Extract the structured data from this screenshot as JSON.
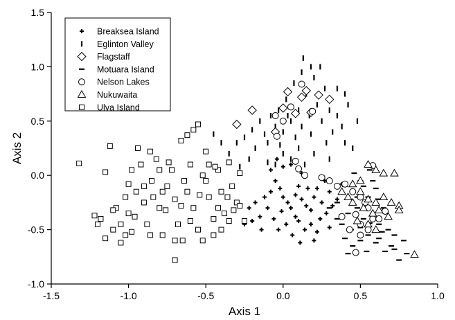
{
  "chart_data": {
    "type": "scatter",
    "xlabel": "Axis 1",
    "ylabel": "Axis 2",
    "xlim": [
      -1.5,
      1.0
    ],
    "ylim": [
      -1.0,
      1.5
    ],
    "x_ticks": [
      "-1.5",
      "-1.0",
      "-0.5",
      "0.0",
      "0.5",
      "1.0"
    ],
    "y_ticks": [
      "-1.0",
      "-0.5",
      "0.0",
      "0.5",
      "1.0",
      "1.5"
    ],
    "grid": false,
    "legend_position": "top-left",
    "series": [
      {
        "name": "Breaksea Island",
        "marker": "plus",
        "points": [
          [
            -0.08,
            0.05
          ],
          [
            -0.05,
            -0.05
          ],
          [
            -0.02,
            -0.12
          ],
          [
            0.0,
            -0.2
          ],
          [
            0.03,
            -0.25
          ],
          [
            0.05,
            -0.3
          ],
          [
            0.08,
            -0.18
          ],
          [
            0.1,
            -0.1
          ],
          [
            0.12,
            -0.22
          ],
          [
            0.15,
            -0.28
          ],
          [
            0.18,
            -0.32
          ],
          [
            0.2,
            -0.2
          ],
          [
            0.22,
            -0.12
          ],
          [
            0.25,
            -0.25
          ],
          [
            0.28,
            -0.35
          ],
          [
            0.3,
            -0.15
          ],
          [
            0.32,
            -0.28
          ],
          [
            0.35,
            -0.22
          ],
          [
            -0.1,
            -0.3
          ],
          [
            -0.12,
            -0.2
          ],
          [
            -0.15,
            -0.38
          ],
          [
            -0.18,
            -0.25
          ],
          [
            -0.2,
            -0.42
          ],
          [
            -0.22,
            -0.3
          ],
          [
            -0.25,
            -0.45
          ],
          [
            -0.06,
            -0.4
          ],
          [
            -0.03,
            -0.5
          ],
          [
            0.02,
            -0.45
          ],
          [
            0.06,
            -0.55
          ],
          [
            0.1,
            -0.42
          ],
          [
            0.14,
            -0.5
          ],
          [
            0.18,
            -0.45
          ],
          [
            0.22,
            -0.52
          ],
          [
            0.05,
            0.1
          ],
          [
            0.12,
            0.02
          ],
          [
            0.0,
            0.08
          ],
          [
            -0.08,
            -0.15
          ],
          [
            -0.01,
            -0.33
          ],
          [
            0.08,
            -0.38
          ],
          [
            0.16,
            -0.12
          ],
          [
            0.24,
            -0.4
          ],
          [
            0.27,
            -0.05
          ],
          [
            -0.04,
            0.15
          ],
          [
            0.2,
            -0.6
          ],
          [
            0.38,
            -0.08
          ],
          [
            -0.14,
            -0.5
          ],
          [
            0.11,
            -0.62
          ],
          [
            0.3,
            -0.48
          ]
        ]
      },
      {
        "name": "Eglinton Valley",
        "marker": "vbar",
        "points": [
          [
            -0.3,
            0.3
          ],
          [
            -0.25,
            0.35
          ],
          [
            -0.2,
            0.42
          ],
          [
            -0.18,
            0.25
          ],
          [
            -0.15,
            0.5
          ],
          [
            -0.12,
            0.38
          ],
          [
            -0.1,
            0.3
          ],
          [
            -0.08,
            0.55
          ],
          [
            -0.05,
            0.45
          ],
          [
            -0.03,
            0.6
          ],
          [
            0.0,
            0.4
          ],
          [
            0.02,
            0.7
          ],
          [
            0.05,
            0.5
          ],
          [
            0.07,
            0.85
          ],
          [
            0.1,
            0.6
          ],
          [
            0.12,
            0.45
          ],
          [
            0.15,
            0.75
          ],
          [
            0.17,
            0.55
          ],
          [
            0.2,
            0.9
          ],
          [
            0.22,
            0.65
          ],
          [
            0.25,
            0.5
          ],
          [
            0.27,
            0.8
          ],
          [
            0.3,
            0.6
          ],
          [
            0.32,
            0.4
          ],
          [
            0.35,
            0.55
          ],
          [
            0.38,
            0.45
          ],
          [
            0.4,
            0.3
          ],
          [
            0.42,
            0.65
          ],
          [
            0.45,
            0.25
          ],
          [
            0.48,
            0.5
          ],
          [
            0.13,
            1.08
          ],
          [
            0.12,
            0.95
          ],
          [
            0.18,
            1.0
          ],
          [
            0.24,
            1.0
          ],
          [
            0.0,
            0.2
          ],
          [
            0.05,
            0.15
          ],
          [
            -0.05,
            0.1
          ],
          [
            0.1,
            0.25
          ],
          [
            0.2,
            0.2
          ],
          [
            0.3,
            0.15
          ],
          [
            -0.22,
            0.15
          ],
          [
            -0.35,
            0.2
          ],
          [
            -0.4,
            0.3
          ],
          [
            -0.45,
            0.38
          ],
          [
            -0.28,
            0.08
          ],
          [
            0.08,
            0.35
          ],
          [
            0.18,
            0.38
          ],
          [
            0.28,
            0.3
          ],
          [
            0.35,
            0.8
          ],
          [
            0.4,
            0.75
          ],
          [
            -0.1,
            0.12
          ],
          [
            0.14,
            0.1
          ],
          [
            0.03,
            0.55
          ],
          [
            -0.02,
            0.28
          ]
        ]
      },
      {
        "name": "Flagstaff",
        "marker": "diamond",
        "points": [
          [
            -0.3,
            0.47
          ],
          [
            -0.2,
            0.6
          ],
          [
            -0.05,
            0.4
          ],
          [
            0.0,
            0.62
          ],
          [
            0.03,
            0.77
          ],
          [
            0.08,
            0.57
          ],
          [
            0.12,
            0.72
          ],
          [
            0.15,
            0.78
          ],
          [
            0.18,
            0.58
          ],
          [
            0.23,
            0.74
          ],
          [
            0.3,
            0.7
          ]
        ]
      },
      {
        "name": "Motuara Island",
        "marker": "hbar",
        "points": [
          [
            0.4,
            -0.1
          ],
          [
            0.45,
            -0.15
          ],
          [
            0.5,
            -0.05
          ],
          [
            0.55,
            -0.2
          ],
          [
            0.6,
            -0.12
          ],
          [
            0.65,
            -0.3
          ],
          [
            0.35,
            -0.25
          ],
          [
            0.42,
            -0.35
          ],
          [
            0.48,
            -0.3
          ],
          [
            0.52,
            -0.4
          ],
          [
            0.58,
            -0.35
          ],
          [
            0.62,
            -0.45
          ],
          [
            0.68,
            -0.5
          ],
          [
            0.72,
            -0.55
          ],
          [
            0.78,
            -0.6
          ],
          [
            0.8,
            -0.72
          ],
          [
            0.75,
            -0.78
          ],
          [
            0.7,
            -0.65
          ],
          [
            0.66,
            -0.7
          ],
          [
            0.6,
            -0.62
          ],
          [
            0.55,
            -0.55
          ],
          [
            0.5,
            -0.6
          ],
          [
            0.45,
            -0.65
          ],
          [
            0.4,
            -0.58
          ],
          [
            0.38,
            -0.45
          ],
          [
            0.44,
            -0.5
          ],
          [
            0.5,
            -0.48
          ],
          [
            0.56,
            -0.44
          ],
          [
            0.62,
            -0.58
          ],
          [
            0.68,
            -0.4
          ],
          [
            0.3,
            -0.3
          ],
          [
            0.35,
            -0.4
          ],
          [
            0.48,
            -0.2
          ],
          [
            0.52,
            -0.1
          ],
          [
            0.58,
            -0.05
          ],
          [
            0.62,
            -0.22
          ],
          [
            0.46,
            0.02
          ],
          [
            0.56,
            0.05
          ],
          [
            0.72,
            -0.68
          ],
          [
            0.64,
            -0.52
          ],
          [
            0.54,
            -0.7
          ],
          [
            0.42,
            -0.72
          ]
        ]
      },
      {
        "name": "Nelson Lakes",
        "marker": "circle",
        "points": [
          [
            -0.04,
            0.36
          ],
          [
            0.0,
            0.5
          ],
          [
            0.05,
            0.63
          ],
          [
            0.12,
            0.84
          ],
          [
            0.19,
            0.59
          ],
          [
            -0.05,
            0.55
          ],
          [
            0.08,
            0.13
          ],
          [
            0.1,
            0.06
          ],
          [
            0.14,
            0.0
          ],
          [
            0.25,
            -0.02
          ],
          [
            0.3,
            -0.05
          ],
          [
            0.35,
            -0.1
          ],
          [
            0.4,
            -0.08
          ],
          [
            0.45,
            -0.15
          ],
          [
            0.5,
            -0.2
          ],
          [
            0.55,
            -0.3
          ],
          [
            0.58,
            0.09
          ],
          [
            0.47,
            -0.36
          ],
          [
            0.43,
            -0.5
          ],
          [
            0.5,
            -0.45
          ],
          [
            0.53,
            -0.25
          ],
          [
            0.58,
            -0.4
          ],
          [
            0.66,
            -0.33
          ],
          [
            0.62,
            -0.4
          ],
          [
            0.5,
            -0.55
          ],
          [
            0.47,
            -0.71
          ],
          [
            0.38,
            -0.38
          ],
          [
            0.55,
            -0.5
          ]
        ]
      },
      {
        "name": "Nukuwaita",
        "marker": "triangle",
        "points": [
          [
            0.45,
            -0.08
          ],
          [
            0.5,
            -0.05
          ],
          [
            0.55,
            0.1
          ],
          [
            0.6,
            0.05
          ],
          [
            0.65,
            0.02
          ],
          [
            0.72,
            0.02
          ],
          [
            0.5,
            -0.15
          ],
          [
            0.55,
            -0.22
          ],
          [
            0.6,
            -0.25
          ],
          [
            0.65,
            -0.2
          ],
          [
            0.7,
            -0.25
          ],
          [
            0.75,
            -0.28
          ],
          [
            0.52,
            -0.3
          ],
          [
            0.58,
            -0.35
          ],
          [
            0.62,
            -0.32
          ],
          [
            0.68,
            -0.38
          ],
          [
            0.75,
            -0.32
          ],
          [
            0.45,
            -0.25
          ],
          [
            0.48,
            -0.42
          ],
          [
            0.55,
            -0.45
          ],
          [
            0.6,
            -0.5
          ],
          [
            0.85,
            -0.73
          ],
          [
            0.42,
            -0.2
          ],
          [
            0.38,
            -0.15
          ]
        ]
      },
      {
        "name": "Ulva Island",
        "marker": "square",
        "points": [
          [
            -1.32,
            0.11
          ],
          [
            -1.22,
            -0.37
          ],
          [
            -1.15,
            0.03
          ],
          [
            -1.12,
            0.27
          ],
          [
            -1.08,
            -0.3
          ],
          [
            -1.05,
            -0.45
          ],
          [
            -1.02,
            -0.2
          ],
          [
            -1.0,
            -0.35
          ],
          [
            -0.98,
            -0.52
          ],
          [
            -0.95,
            -0.15
          ],
          [
            -0.92,
            0.1
          ],
          [
            -0.9,
            -0.25
          ],
          [
            -0.88,
            -0.45
          ],
          [
            -0.85,
            -0.05
          ],
          [
            -0.82,
            0.15
          ],
          [
            -0.8,
            -0.3
          ],
          [
            -0.78,
            -0.55
          ],
          [
            -0.75,
            -0.1
          ],
          [
            -0.72,
            0.05
          ],
          [
            -0.7,
            -0.22
          ],
          [
            -0.68,
            -0.45
          ],
          [
            -0.65,
            -0.6
          ],
          [
            -0.62,
            -0.15
          ],
          [
            -0.6,
            0.1
          ],
          [
            -0.58,
            -0.3
          ],
          [
            -0.55,
            -0.5
          ],
          [
            -0.52,
            0.0
          ],
          [
            -0.5,
            0.22
          ],
          [
            -0.48,
            -0.2
          ],
          [
            -0.45,
            -0.4
          ],
          [
            -0.42,
            0.05
          ],
          [
            -0.4,
            -0.15
          ],
          [
            -0.38,
            -0.35
          ],
          [
            -0.35,
            0.12
          ],
          [
            -0.33,
            -0.1
          ],
          [
            -0.3,
            -0.25
          ],
          [
            -0.28,
            0.02
          ],
          [
            -0.25,
            -0.42
          ],
          [
            -0.58,
            0.42
          ],
          [
            -0.55,
            0.47
          ],
          [
            -0.62,
            0.37
          ],
          [
            -0.66,
            0.32
          ],
          [
            -0.7,
            -0.78
          ],
          [
            -1.18,
            -0.4
          ],
          [
            -1.15,
            -0.58
          ],
          [
            -1.2,
            -0.45
          ],
          [
            -1.1,
            -0.5
          ],
          [
            -1.05,
            -0.62
          ],
          [
            -1.02,
            -0.55
          ],
          [
            -0.98,
            0.05
          ],
          [
            -0.94,
            0.25
          ],
          [
            -0.86,
            0.22
          ],
          [
            -0.84,
            -0.2
          ],
          [
            -0.76,
            -0.32
          ],
          [
            -0.74,
            0.12
          ],
          [
            -0.6,
            -0.42
          ],
          [
            -0.45,
            -0.55
          ],
          [
            -0.4,
            -0.5
          ],
          [
            -0.36,
            -0.2
          ],
          [
            -0.32,
            -0.32
          ],
          [
            -0.44,
            0.08
          ],
          [
            -0.48,
            0.1
          ],
          [
            -0.5,
            -0.05
          ],
          [
            -0.64,
            -0.05
          ],
          [
            -0.8,
            0.05
          ],
          [
            -0.9,
            -0.1
          ],
          [
            -1.1,
            -0.32
          ],
          [
            -0.78,
            -0.15
          ],
          [
            -0.66,
            -0.28
          ],
          [
            -0.54,
            -0.18
          ],
          [
            -0.42,
            -0.3
          ],
          [
            -0.28,
            -0.28
          ],
          [
            -0.35,
            -0.42
          ],
          [
            -0.52,
            -0.6
          ],
          [
            -0.7,
            -0.6
          ],
          [
            -0.86,
            -0.55
          ],
          [
            -0.96,
            -0.38
          ],
          [
            -1.0,
            -0.08
          ]
        ]
      }
    ]
  }
}
